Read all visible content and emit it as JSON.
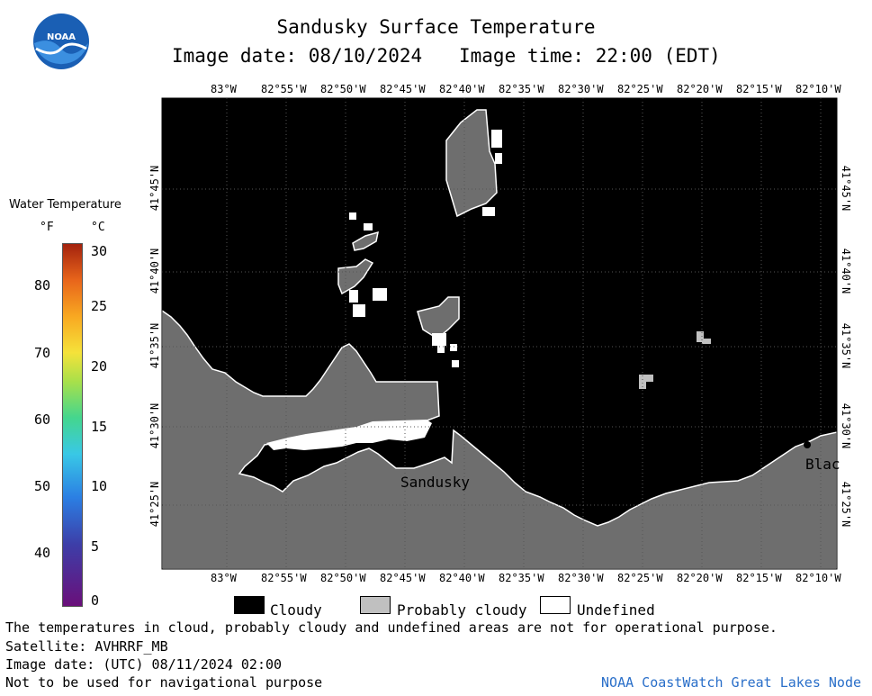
{
  "header": {
    "title": "Sandusky Surface Temperature",
    "date_label": "Image date: 08/10/2024",
    "time_label": "Image time: 22:00 (EDT)"
  },
  "logo": {
    "text": "NOAA"
  },
  "longitude_ticks": [
    "83°W",
    "82°55'W",
    "82°50'W",
    "82°45'W",
    "82°40'W",
    "82°35'W",
    "82°30'W",
    "82°25'W",
    "82°20'W",
    "82°15'W",
    "82°10'W"
  ],
  "latitude_ticks": [
    "41°45'N",
    "41°40'N",
    "41°35'N",
    "41°30'N",
    "41°25'N"
  ],
  "map_labels": {
    "city": "Sandusky",
    "edge": "Blac"
  },
  "colorbar": {
    "title": "Water Temperature",
    "unit_f": "°F",
    "unit_c": "°C",
    "f_ticks": [
      "80",
      "70",
      "60",
      "50",
      "40"
    ],
    "c_ticks": [
      "30",
      "25",
      "20",
      "15",
      "10",
      "5",
      "0"
    ]
  },
  "key": [
    {
      "label": "Cloudy",
      "color": "#000000"
    },
    {
      "label": "Probably cloudy",
      "color": "#c0c0c0"
    },
    {
      "label": "Undefined",
      "color": "#ffffff"
    }
  ],
  "footer": {
    "disclaimer": "The temperatures in cloud, probably cloudy and undefined areas are not for operational purpose.",
    "satellite": "Satellite: AVHRRF_MB",
    "utc_date": "Image date: (UTC) 08/11/2024  02:00",
    "nav_warning": "Not to be used for navigational purpose",
    "credit": "NOAA CoastWatch Great Lakes Node"
  },
  "colors": {
    "cloud": "#000000",
    "land": "#6e6e6e",
    "probably_cloudy": "#c0c0c0",
    "undefined": "#ffffff",
    "credit": "#2a6fc9"
  }
}
